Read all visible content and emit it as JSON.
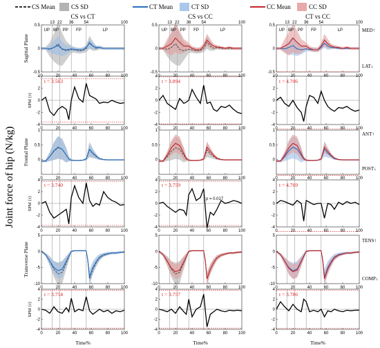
{
  "legend": [
    {
      "label": "CS Mean",
      "style": "dashed",
      "color": "#333333"
    },
    {
      "label": "CS SD",
      "color": "#b3b3b3"
    },
    {
      "label": "CT Mean",
      "style": "solid",
      "color": "#2a6ebb"
    },
    {
      "label": "CT SD",
      "color": "#a9c8ea"
    },
    {
      "label": "CC Mean",
      "style": "solid",
      "color": "#c0272d"
    },
    {
      "label": "CC SD",
      "color": "#e7a9a9"
    }
  ],
  "colors": {
    "cs": "#555555",
    "cs_sd": "#b0b0b0",
    "ct": "#2a6ebb",
    "ct_sd": "#9dc0e8",
    "cc": "#c0272d",
    "cc_sd": "#e29c9c"
  },
  "figure_ylabel": "Joint force of hip (N/kg)",
  "columns": [
    "CS vs CT",
    "CS vs CC",
    "CT vs CC"
  ],
  "phase_labels": [
    "UP",
    "BP",
    "PP",
    "FP",
    "LP"
  ],
  "phase_ticks": [
    "13",
    "22",
    "36",
    "54",
    "100"
  ],
  "row_labels": [
    "Sagittal Plane",
    "Frontal Plane",
    "Transverse Plane"
  ],
  "spm_label": "SPM {t}",
  "xlabel": "Time%",
  "direction_labels": [
    {
      "pos": "MED↑",
      "neg": "LAT↓"
    },
    {
      "pos": "ANT↑",
      "neg": "POST↓"
    },
    {
      "pos": "TENS↑",
      "neg": "COMP↓"
    }
  ],
  "p_annotation": "p = 0.017",
  "chart_data": [
    {
      "type": "line",
      "name": "Sagittal Plane",
      "ylim": [
        -0.5,
        0.5
      ],
      "yticks": [
        "0.5",
        "0",
        "-0.5"
      ],
      "x": [
        0,
        5,
        10,
        15,
        20,
        25,
        30,
        36,
        40,
        45,
        50,
        54,
        58,
        62,
        66,
        70,
        75,
        80,
        85,
        90,
        95,
        100
      ],
      "mean": {
        "cs": [
          0.0,
          0.0,
          -0.02,
          0.02,
          0.1,
          -0.02,
          -0.05,
          -0.02,
          -0.03,
          -0.05,
          -0.04,
          0.0,
          0.13,
          0.05,
          0.0,
          0.02,
          0.0,
          0.0,
          0.0,
          0.0,
          0.0,
          0.0
        ],
        "ct": [
          0.0,
          0.0,
          -0.01,
          0.02,
          0.06,
          -0.01,
          -0.03,
          -0.01,
          -0.02,
          -0.03,
          -0.03,
          0.02,
          0.11,
          0.05,
          0.02,
          0.02,
          0.0,
          0.0,
          0.0,
          0.0,
          0.0,
          0.0
        ],
        "cc": [
          0.0,
          0.0,
          0.05,
          0.1,
          0.22,
          0.13,
          0.05,
          0.05,
          0.0,
          -0.03,
          -0.03,
          0.05,
          0.18,
          0.1,
          0.05,
          0.03,
          0.02,
          0.0,
          0.02,
          0.0,
          0.0,
          0.0
        ]
      },
      "sd": {
        "cs": [
          0.03,
          0.03,
          0.15,
          0.3,
          0.45,
          0.35,
          0.2,
          0.08,
          0.06,
          0.06,
          0.06,
          0.08,
          0.14,
          0.1,
          0.05,
          0.04,
          0.03,
          0.03,
          0.03,
          0.03,
          0.03,
          0.03
        ],
        "ct": [
          0.02,
          0.02,
          0.07,
          0.14,
          0.2,
          0.15,
          0.1,
          0.05,
          0.04,
          0.04,
          0.04,
          0.05,
          0.1,
          0.08,
          0.04,
          0.03,
          0.02,
          0.02,
          0.02,
          0.02,
          0.02,
          0.02
        ],
        "cc": [
          0.03,
          0.03,
          0.15,
          0.25,
          0.3,
          0.25,
          0.15,
          0.07,
          0.05,
          0.05,
          0.05,
          0.07,
          0.13,
          0.1,
          0.05,
          0.04,
          0.03,
          0.03,
          0.03,
          0.03,
          0.03,
          0.03
        ]
      }
    },
    {
      "type": "line",
      "name": "Frontal Plane",
      "ylim": [
        -0.5,
        1.0
      ],
      "yticks": [
        "1",
        "0.5",
        "0"
      ],
      "x": [
        0,
        5,
        10,
        15,
        20,
        25,
        30,
        33,
        36,
        40,
        45,
        50,
        54,
        58,
        62,
        66,
        70,
        75,
        80,
        85,
        90,
        95,
        100
      ],
      "mean": {
        "cs": [
          -0.05,
          -0.05,
          0.1,
          0.28,
          0.4,
          0.35,
          0.15,
          0.02,
          -0.02,
          -0.03,
          -0.03,
          -0.02,
          0.02,
          0.33,
          0.2,
          0.1,
          0.03,
          0.0,
          -0.01,
          -0.01,
          -0.01,
          -0.01,
          -0.01
        ],
        "ct": [
          -0.05,
          -0.05,
          0.1,
          0.3,
          0.42,
          0.35,
          0.15,
          0.02,
          -0.02,
          -0.03,
          -0.03,
          -0.02,
          0.02,
          0.35,
          0.22,
          0.12,
          0.03,
          0.0,
          -0.01,
          -0.01,
          -0.01,
          -0.01,
          -0.01
        ],
        "cc": [
          -0.05,
          -0.05,
          0.15,
          0.4,
          0.55,
          0.48,
          0.2,
          0.04,
          -0.02,
          -0.03,
          -0.03,
          -0.02,
          0.02,
          0.42,
          0.28,
          0.15,
          0.05,
          0.0,
          -0.01,
          -0.01,
          -0.01,
          -0.01,
          -0.01
        ]
      },
      "sd": {
        "cs": [
          0.03,
          0.04,
          0.15,
          0.3,
          0.38,
          0.35,
          0.25,
          0.08,
          0.03,
          0.02,
          0.02,
          0.02,
          0.05,
          0.25,
          0.15,
          0.08,
          0.04,
          0.02,
          0.02,
          0.02,
          0.02,
          0.02,
          0.02
        ],
        "ct": [
          0.03,
          0.04,
          0.15,
          0.3,
          0.38,
          0.35,
          0.25,
          0.08,
          0.03,
          0.02,
          0.02,
          0.02,
          0.05,
          0.25,
          0.15,
          0.08,
          0.04,
          0.02,
          0.02,
          0.02,
          0.02,
          0.02,
          0.02
        ],
        "cc": [
          0.03,
          0.04,
          0.12,
          0.25,
          0.3,
          0.3,
          0.2,
          0.07,
          0.03,
          0.02,
          0.02,
          0.02,
          0.05,
          0.2,
          0.13,
          0.07,
          0.04,
          0.02,
          0.02,
          0.02,
          0.02,
          0.02,
          0.02
        ]
      }
    },
    {
      "type": "line",
      "name": "Transverse Plane",
      "ylim": [
        -10,
        5
      ],
      "yticks": [
        "5",
        "0",
        "-5",
        "-10"
      ],
      "x": [
        0,
        5,
        10,
        15,
        20,
        25,
        30,
        36,
        40,
        45,
        50,
        54,
        56,
        58,
        62,
        66,
        70,
        75,
        80,
        85,
        90,
        95,
        100
      ],
      "mean": {
        "cs": [
          0.0,
          -1.0,
          -3.0,
          -5.5,
          -7.0,
          -6.5,
          -3.5,
          0.0,
          0.2,
          0.2,
          0.2,
          0.2,
          -3.0,
          -8.5,
          -5.5,
          -3.5,
          -2.0,
          -1.2,
          -0.8,
          -0.5,
          -0.5,
          -0.3,
          -0.2
        ],
        "ct": [
          0.0,
          -1.0,
          -3.0,
          -5.0,
          -6.0,
          -5.5,
          -3.0,
          0.0,
          0.2,
          0.2,
          0.2,
          0.2,
          -3.0,
          -8.0,
          -5.0,
          -3.2,
          -1.8,
          -1.0,
          -0.7,
          -0.5,
          -0.5,
          -0.3,
          -0.2
        ],
        "cc": [
          0.0,
          -1.0,
          -3.0,
          -5.2,
          -6.3,
          -5.8,
          -3.2,
          0.0,
          0.2,
          0.2,
          0.2,
          0.2,
          -3.0,
          -8.5,
          -5.5,
          -3.5,
          -2.0,
          -1.2,
          -0.8,
          -0.5,
          -0.5,
          -0.3,
          -0.2
        ]
      },
      "sd": {
        "cs": [
          0.3,
          0.5,
          1.5,
          2.5,
          3.5,
          3.5,
          2.0,
          0.3,
          0.2,
          0.2,
          0.2,
          0.2,
          1.0,
          1.8,
          1.5,
          1.2,
          0.8,
          0.5,
          0.4,
          0.3,
          0.3,
          0.3,
          0.3
        ],
        "ct": [
          0.3,
          0.5,
          1.2,
          2.0,
          2.5,
          2.5,
          1.5,
          0.3,
          0.2,
          0.2,
          0.2,
          0.2,
          1.0,
          2.5,
          2.0,
          1.5,
          1.0,
          0.6,
          0.5,
          0.4,
          0.4,
          0.3,
          0.3
        ],
        "cc": [
          0.3,
          0.5,
          1.2,
          2.0,
          2.3,
          2.3,
          1.5,
          0.3,
          0.2,
          0.2,
          0.2,
          0.2,
          1.0,
          2.0,
          1.6,
          1.2,
          0.8,
          0.5,
          0.4,
          0.3,
          0.3,
          0.3,
          0.3
        ]
      }
    },
    {
      "type": "line",
      "name": "SPM {t}",
      "ylim": [
        -4,
        4
      ],
      "yticks": [
        "4",
        "2",
        "0",
        "-2",
        "-4"
      ],
      "x": [
        0,
        5,
        10,
        15,
        20,
        25,
        30,
        33,
        36,
        40,
        45,
        50,
        54,
        58,
        62,
        66,
        70,
        75,
        80,
        85,
        90,
        95,
        100
      ],
      "panels": [
        {
          "row": "Sagittal Plane",
          "column": "CS vs CT",
          "threshold": 3.563,
          "threshold_label": "t = 3.563",
          "t": [
            0.0,
            0.5,
            -1.8,
            -2.5,
            -1.5,
            -1.0,
            -1.5,
            -3.2,
            0.0,
            2.2,
            0.3,
            -0.3,
            2.8,
            0.8,
            0.5,
            0.2,
            -0.5,
            -0.3,
            -0.4,
            0.0,
            -0.3,
            -0.5,
            -0.4
          ]
        },
        {
          "row": "Sagittal Plane",
          "column": "CS vs CC",
          "threshold": 3.894,
          "threshold_label": "t = 3.894",
          "t": [
            0.0,
            0.8,
            -0.5,
            -1.0,
            -1.5,
            0.3,
            -0.5,
            -0.3,
            0.0,
            1.8,
            0.5,
            -0.5,
            2.5,
            -0.5,
            -0.3,
            -1.5,
            -1.8,
            -1.0,
            -1.2,
            -0.8,
            -1.5,
            -2.0,
            -2.2
          ]
        },
        {
          "row": "Sagittal Plane",
          "column": "CT vs CC",
          "threshold": 4.706,
          "threshold_label": "t = 4.706",
          "t": [
            0.0,
            0.5,
            -0.5,
            -1.0,
            0.0,
            -1.2,
            -2.0,
            -3.5,
            -1.0,
            0.8,
            0.5,
            -0.5,
            1.5,
            0.0,
            -1.0,
            -1.5,
            -1.8,
            -1.2,
            -1.3,
            -1.0,
            -1.5,
            -1.8,
            -1.6
          ]
        },
        {
          "row": "Frontal Plane",
          "column": "CS vs CT",
          "threshold": 3.74,
          "threshold_label": "t = 3.740",
          "t": [
            0.0,
            0.3,
            -1.5,
            -2.5,
            -2.0,
            -1.5,
            -1.0,
            -3.5,
            1.0,
            3.0,
            1.0,
            0.0,
            3.5,
            0.5,
            -0.5,
            0.0,
            -0.3,
            2.0,
            1.0,
            0.5,
            0.2,
            -0.3,
            -0.2
          ]
        },
        {
          "row": "Frontal Plane",
          "column": "CS vs CC",
          "threshold": 3.759,
          "threshold_label": "t = 3.759",
          "t": [
            0.0,
            0.2,
            -0.5,
            -1.0,
            -1.5,
            -1.0,
            -1.2,
            -2.0,
            1.5,
            2.5,
            0.5,
            1.0,
            2.5,
            -4.2,
            -1.5,
            -2.0,
            -1.0,
            0.5,
            0.0,
            0.2,
            0.5,
            0.3,
            0.0
          ]
        },
        {
          "row": "Frontal Plane",
          "column": "CT vs CC",
          "threshold": 4.769,
          "threshold_label": "t = 4.769",
          "t": [
            0.0,
            0.5,
            0.3,
            0.0,
            -0.3,
            0.5,
            0.0,
            -3.0,
            0.5,
            0.2,
            -0.2,
            0.0,
            0.0,
            -2.5,
            0.0,
            -0.2,
            -1.0,
            0.2,
            -0.2,
            0.3,
            0.0,
            0.2,
            -0.2
          ]
        },
        {
          "row": "Transverse Plane",
          "column": "CS vs CT",
          "threshold": 3.754,
          "threshold_label": "t = 3.754",
          "t": [
            0.0,
            -0.2,
            -0.8,
            0.5,
            -0.5,
            -0.8,
            0.3,
            -0.5,
            2.2,
            -0.5,
            0.0,
            -0.3,
            2.5,
            -0.3,
            -1.0,
            -0.5,
            0.0,
            -0.5,
            -0.2,
            -0.8,
            -0.3,
            -0.5,
            -0.2
          ]
        },
        {
          "row": "Transverse Plane",
          "column": "CS vs CC",
          "threshold": 3.757,
          "threshold_label": "t = 3.757",
          "t": [
            0.0,
            -0.2,
            -0.5,
            0.0,
            -0.8,
            0.5,
            -0.5,
            -1.0,
            2.0,
            -1.5,
            0.0,
            0.5,
            3.0,
            -3.5,
            -1.0,
            -0.5,
            0.0,
            -0.3,
            -0.5,
            -0.2,
            -0.3,
            -0.2,
            -0.3
          ]
        },
        {
          "row": "Transverse Plane",
          "column": "CT vs CC",
          "threshold": 3.786,
          "threshold_label": "t = 3.786",
          "t": [
            0.0,
            1.5,
            0.5,
            -0.3,
            1.0,
            0.0,
            -0.5,
            2.0,
            1.5,
            -0.5,
            -0.2,
            -0.5,
            0.0,
            -1.5,
            -0.3,
            -0.5,
            0.0,
            -0.3,
            -0.5,
            -0.2,
            -0.3,
            -0.2,
            -0.2
          ]
        }
      ]
    }
  ]
}
